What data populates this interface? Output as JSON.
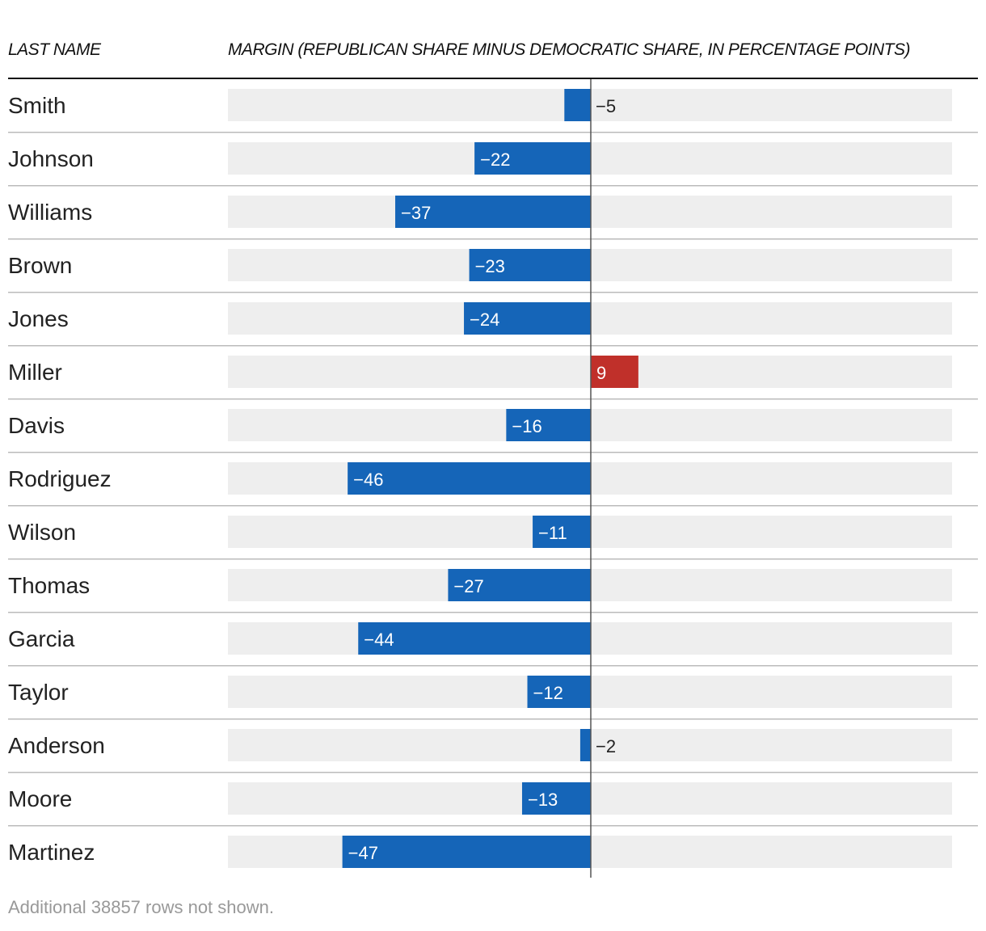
{
  "header": {
    "name_col": "LAST NAME",
    "margin_col": "MARGIN (REPUBLICAN SHARE MINUS DEMOCRATIC SHARE, IN PERCENTAGE POINTS)"
  },
  "colors": {
    "democratic": "#1565b8",
    "republican": "#c0302a",
    "track": "#eeeeee",
    "row_rule": "#bbbbbb",
    "axis": "#555555"
  },
  "chart_data": {
    "type": "bar",
    "orientation": "horizontal",
    "title": "",
    "xlabel": "MARGIN (REPUBLICAN SHARE MINUS DEMOCRATIC SHARE, IN PERCENTAGE POINTS)",
    "ylabel": "LAST NAME",
    "xlim": [
      -60,
      60
    ],
    "categories": [
      "Smith",
      "Johnson",
      "Williams",
      "Brown",
      "Jones",
      "Miller",
      "Davis",
      "Rodriguez",
      "Wilson",
      "Thomas",
      "Garcia",
      "Taylor",
      "Anderson",
      "Moore",
      "Martinez"
    ],
    "values": [
      -5,
      -22,
      -37,
      -23,
      -24,
      9,
      -16,
      -46,
      -11,
      -27,
      -44,
      -12,
      -2,
      -13,
      -47
    ],
    "value_labels": [
      "−5",
      "−22",
      "−37",
      "−23",
      "−24",
      "9",
      "−16",
      "−46",
      "−11",
      "−27",
      "−44",
      "−12",
      "−2",
      "−13",
      "−47"
    ]
  },
  "footnote": "Additional 38857 rows not shown."
}
